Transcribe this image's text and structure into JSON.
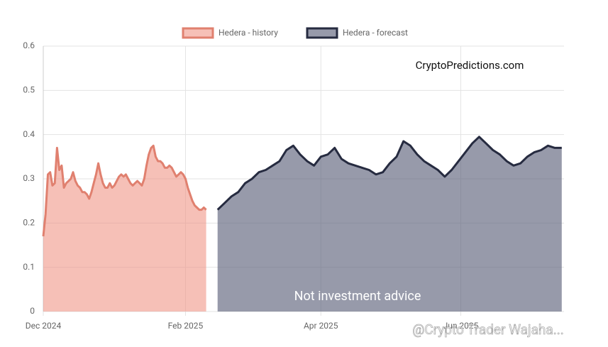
{
  "chart_data": {
    "type": "area",
    "xlim": [
      0,
      227
    ],
    "xticks": [
      {
        "value": 0,
        "label": "Dec 2024"
      },
      {
        "value": 62,
        "label": "Feb 2025"
      },
      {
        "value": 121,
        "label": "Apr 2025"
      },
      {
        "value": 182,
        "label": "Jun 2025"
      }
    ],
    "ylim": [
      0,
      0.6
    ],
    "yticks": [
      0,
      0.1,
      0.2,
      0.3,
      0.4,
      0.5,
      0.6
    ],
    "grid": true,
    "legend": "top",
    "annotations": [
      "CryptoPredictions.com",
      "Not investment advice",
      "@Crypto Trader Wajaha..."
    ],
    "series": [
      {
        "name": "Hedera - history",
        "color": "#e0806f",
        "fill": "rgba(240,150,135,0.6)",
        "x": [
          0,
          1,
          2,
          3,
          4,
          5,
          6,
          7,
          8,
          9,
          10,
          11,
          12,
          13,
          14,
          15,
          16,
          17,
          18,
          19,
          20,
          21,
          22,
          23,
          24,
          25,
          26,
          27,
          28,
          29,
          30,
          31,
          32,
          33,
          34,
          35,
          36,
          37,
          38,
          39,
          40,
          41,
          42,
          43,
          44,
          45,
          46,
          47,
          48,
          49,
          50,
          51,
          52,
          53,
          54,
          55,
          56,
          57,
          58,
          59,
          60,
          61,
          62,
          63,
          64,
          65,
          66,
          67,
          68,
          69,
          70,
          71
        ],
        "values": [
          0.17,
          0.22,
          0.31,
          0.315,
          0.285,
          0.29,
          0.37,
          0.32,
          0.33,
          0.28,
          0.29,
          0.295,
          0.3,
          0.315,
          0.295,
          0.285,
          0.28,
          0.27,
          0.27,
          0.265,
          0.255,
          0.27,
          0.29,
          0.31,
          0.335,
          0.31,
          0.29,
          0.28,
          0.28,
          0.29,
          0.28,
          0.285,
          0.295,
          0.305,
          0.31,
          0.305,
          0.31,
          0.3,
          0.29,
          0.285,
          0.29,
          0.295,
          0.29,
          0.285,
          0.3,
          0.33,
          0.355,
          0.37,
          0.375,
          0.35,
          0.34,
          0.34,
          0.335,
          0.325,
          0.325,
          0.33,
          0.325,
          0.315,
          0.305,
          0.31,
          0.315,
          0.31,
          0.3,
          0.28,
          0.265,
          0.25,
          0.24,
          0.235,
          0.23,
          0.23,
          0.235,
          0.23
        ]
      },
      {
        "name": "Hedera - forecast",
        "color": "#262b40",
        "fill": "rgba(95,100,125,0.65)",
        "x": [
          76,
          79,
          82,
          85,
          88,
          91,
          94,
          97,
          100,
          103,
          106,
          109,
          112,
          115,
          118,
          121,
          124,
          127,
          130,
          133,
          136,
          139,
          142,
          145,
          148,
          151,
          154,
          157,
          160,
          163,
          166,
          169,
          172,
          175,
          178,
          181,
          184,
          187,
          190,
          193,
          196,
          199,
          202,
          205,
          208,
          211,
          214,
          217,
          220,
          223,
          226
        ],
        "values": [
          0.23,
          0.245,
          0.26,
          0.27,
          0.29,
          0.3,
          0.315,
          0.32,
          0.33,
          0.34,
          0.365,
          0.375,
          0.355,
          0.34,
          0.33,
          0.35,
          0.355,
          0.37,
          0.345,
          0.335,
          0.33,
          0.325,
          0.32,
          0.31,
          0.315,
          0.335,
          0.35,
          0.385,
          0.375,
          0.355,
          0.34,
          0.33,
          0.32,
          0.305,
          0.32,
          0.34,
          0.36,
          0.38,
          0.395,
          0.38,
          0.365,
          0.355,
          0.34,
          0.33,
          0.335,
          0.35,
          0.36,
          0.365,
          0.375,
          0.37,
          0.37
        ]
      }
    ]
  }
}
